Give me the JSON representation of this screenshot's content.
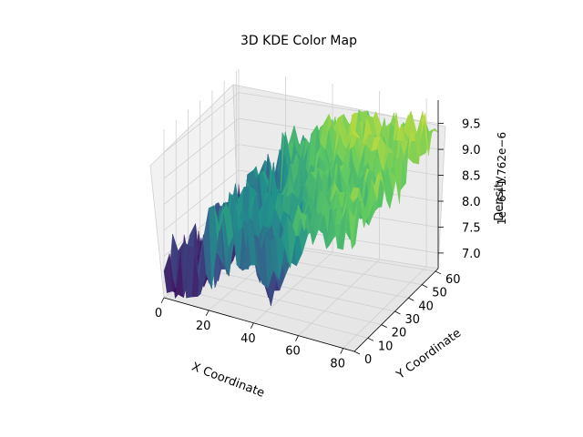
{
  "chart_data": {
    "type": "surface",
    "title": "3D KDE Color Map",
    "xlabel": "X Coordinate",
    "ylabel": "Y Coordinate",
    "zlabel": "Density",
    "z_offset_text": "1e−6+1.762e−6",
    "x_ticks": [
      "0",
      "20",
      "40",
      "60",
      "80"
    ],
    "y_ticks": [
      "0",
      "10",
      "20",
      "30",
      "40",
      "50",
      "60"
    ],
    "z_ticks": [
      "7.0",
      "7.5",
      "8.0",
      "8.5",
      "9.0",
      "9.5"
    ],
    "xlim": [
      0,
      85
    ],
    "ylim": [
      0,
      62
    ],
    "zlim": [
      6.7,
      9.95
    ],
    "colormap": "viridis",
    "colormap_stops": [
      "#440154",
      "#3b528b",
      "#21918c",
      "#5ec962",
      "#fde725"
    ],
    "pane_color": "#f2f2f2",
    "grid_color": "#d0d0d0",
    "grid": true
  }
}
